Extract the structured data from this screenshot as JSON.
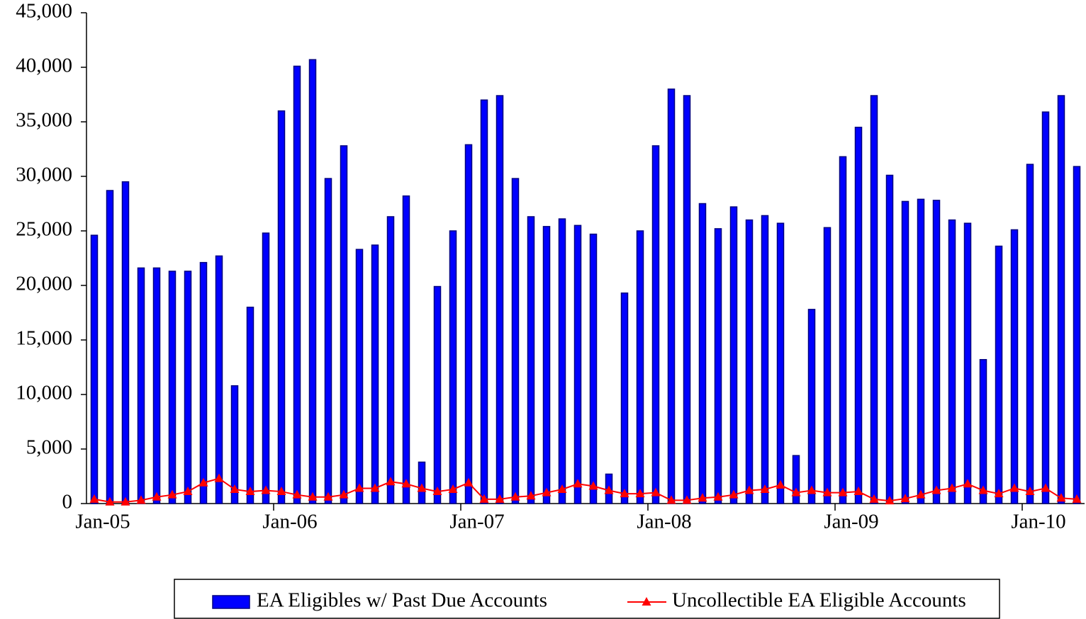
{
  "chart_data": {
    "type": "bar_line",
    "categories": [
      "Jan-05",
      null,
      null,
      null,
      null,
      null,
      null,
      null,
      null,
      null,
      null,
      null,
      "Jan-06",
      null,
      null,
      null,
      null,
      null,
      null,
      null,
      null,
      null,
      null,
      null,
      "Jan-07",
      null,
      null,
      null,
      null,
      null,
      null,
      null,
      null,
      null,
      null,
      null,
      "Jan-08",
      null,
      null,
      null,
      null,
      null,
      null,
      null,
      null,
      null,
      null,
      null,
      "Jan-09",
      null,
      null,
      null,
      null,
      null,
      null,
      null,
      null,
      null,
      null,
      null,
      "Jan-10",
      null,
      null,
      null
    ],
    "series": [
      {
        "name": "EA Eligibles w/ Past Due Accounts",
        "type": "bar",
        "color": "#0000ff",
        "values": [
          24600,
          28700,
          29500,
          21600,
          21600,
          21300,
          21300,
          22100,
          22700,
          10800,
          18000,
          24800,
          36000,
          40100,
          40700,
          29800,
          32800,
          23300,
          23700,
          26300,
          28200,
          3800,
          19900,
          25000,
          32900,
          37000,
          37400,
          29800,
          26300,
          25400,
          26100,
          25500,
          24700,
          2700,
          19300,
          25000,
          32800,
          38000,
          37400,
          27500,
          25200,
          27200,
          26000,
          26400,
          25700,
          4400,
          17800,
          25300,
          31800,
          34500,
          37400,
          30100,
          27700,
          27900,
          27800,
          26000,
          25700,
          13200,
          23600,
          25100,
          31100,
          35900,
          37400,
          30900
        ]
      },
      {
        "name": "Uncollectible EA Eligible Accounts",
        "type": "line",
        "color": "#ff0000",
        "values": [
          400,
          150,
          150,
          300,
          600,
          800,
          1100,
          1900,
          2300,
          1300,
          1100,
          1200,
          1100,
          800,
          600,
          600,
          800,
          1400,
          1400,
          2000,
          1800,
          1400,
          1100,
          1300,
          1900,
          400,
          400,
          600,
          700,
          1000,
          1300,
          1800,
          1600,
          1200,
          900,
          900,
          1000,
          300,
          300,
          500,
          600,
          800,
          1200,
          1300,
          1700,
          1000,
          1200,
          1000,
          1000,
          1100,
          400,
          250,
          450,
          800,
          1200,
          1400,
          1800,
          1200,
          900,
          1400,
          1100,
          1400,
          500,
          400
        ]
      }
    ],
    "ylim": [
      0,
      45000
    ],
    "yticks": [
      0,
      {
        "value": 5000,
        "label": "5,000"
      },
      {
        "value": 10000,
        "label": "10,000"
      },
      {
        "value": 15000,
        "label": "15,000"
      },
      {
        "value": 20000,
        "label": "20,000"
      },
      {
        "value": 25000,
        "label": "25,000"
      },
      {
        "value": 30000,
        "label": "30,000"
      },
      {
        "value": 35000,
        "label": "35,000"
      },
      {
        "value": 40000,
        "label": "40,000"
      },
      {
        "value": 45000,
        "label": "45,000"
      }
    ],
    "grid": false,
    "legend": "bottom"
  }
}
